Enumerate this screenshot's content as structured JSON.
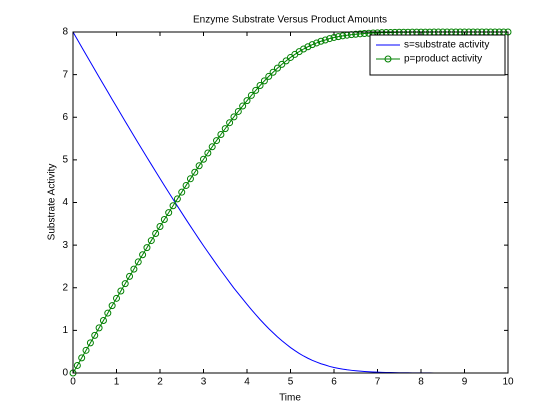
{
  "chart_data": {
    "type": "line",
    "title": "Enzyme Substrate Versus Product Amounts",
    "x_label": "Time",
    "y_label": "Substrate Activity",
    "x": [
      0,
      0.1,
      0.2,
      0.3,
      0.4,
      0.5,
      0.6,
      0.7,
      0.8,
      0.9,
      1,
      1.1,
      1.2,
      1.3,
      1.4,
      1.5,
      1.6,
      1.7,
      1.8,
      1.9,
      2,
      2.1,
      2.2,
      2.3,
      2.4,
      2.5,
      2.6,
      2.7,
      2.8,
      2.9,
      3,
      3.1,
      3.2,
      3.3,
      3.4,
      3.5,
      3.6,
      3.7,
      3.8,
      3.9,
      4,
      4.1,
      4.2,
      4.3,
      4.4,
      4.5,
      4.6,
      4.7,
      4.8,
      4.9,
      5,
      5.1,
      5.2,
      5.3,
      5.4,
      5.5,
      5.6,
      5.7,
      5.8,
      5.9,
      6,
      6.1,
      6.2,
      6.3,
      6.4,
      6.5,
      6.6,
      6.7,
      6.8,
      6.9,
      7,
      7.1,
      7.2,
      7.3,
      7.4,
      7.5,
      7.6,
      7.7,
      7.8,
      7.9,
      8,
      8.1,
      8.2,
      8.3,
      8.4,
      8.5,
      8.6,
      8.7,
      8.8,
      8.9,
      9,
      9.1,
      9.2,
      9.3,
      9.4,
      9.5,
      9.6,
      9.7,
      9.8,
      9.9,
      10
    ],
    "series": [
      {
        "name": "s=substrate activity",
        "color": "#0000ff",
        "marker": "none",
        "values": [
          8,
          7.823,
          7.646,
          7.468,
          7.293,
          7.117,
          6.942,
          6.768,
          6.594,
          6.42,
          6.248,
          6.076,
          5.904,
          5.734,
          5.563,
          5.394,
          5.226,
          5.059,
          4.893,
          4.728,
          4.563,
          4.399,
          4.238,
          4.076,
          3.916,
          3.758,
          3.6,
          3.444,
          3.29,
          3.137,
          2.985,
          2.839,
          2.693,
          2.547,
          2.405,
          2.267,
          2.128,
          1.991,
          1.864,
          1.737,
          1.61,
          1.488,
          1.37,
          1.255,
          1.146,
          1.042,
          0.944,
          0.848,
          0.76,
          0.678,
          0.597,
          0.526,
          0.46,
          0.399,
          0.346,
          0.297,
          0.257,
          0.217,
          0.187,
          0.154,
          0.128,
          0.109,
          0.09,
          0.075,
          0.063,
          0.052,
          0.043,
          0.035,
          0.029,
          0.024,
          0.02,
          0.016,
          0.013,
          0.011,
          0.009,
          0.007,
          0.006,
          0.005,
          0.004,
          0.003,
          0.002,
          0.002,
          0.002,
          0.001,
          0.001,
          0.001,
          0.001,
          0.001,
          0,
          0,
          0,
          0,
          0,
          0,
          0,
          0,
          0,
          0,
          0,
          0,
          0
        ]
      },
      {
        "name": "p=product activity",
        "color": "#008000",
        "marker": "circle",
        "values": [
          0,
          0.177,
          0.354,
          0.532,
          0.707,
          0.883,
          1.058,
          1.232,
          1.406,
          1.58,
          1.752,
          1.924,
          2.096,
          2.266,
          2.437,
          2.606,
          2.774,
          2.941,
          3.107,
          3.272,
          3.437,
          3.601,
          3.762,
          3.924,
          4.084,
          4.242,
          4.4,
          4.556,
          4.71,
          4.863,
          5.015,
          5.161,
          5.307,
          5.453,
          5.595,
          5.733,
          5.872,
          6.009,
          6.136,
          6.263,
          6.39,
          6.512,
          6.63,
          6.745,
          6.854,
          6.958,
          7.056,
          7.152,
          7.24,
          7.322,
          7.403,
          7.474,
          7.54,
          7.601,
          7.654,
          7.703,
          7.743,
          7.783,
          7.813,
          7.846,
          7.872,
          7.891,
          7.91,
          7.925,
          7.937,
          7.948,
          7.957,
          7.965,
          7.971,
          7.976,
          7.98,
          7.984,
          7.987,
          7.989,
          7.991,
          7.993,
          7.994,
          7.995,
          7.996,
          7.997,
          7.998,
          7.998,
          7.998,
          7.999,
          7.999,
          7.999,
          7.999,
          7.999,
          8,
          8,
          8,
          8,
          8,
          8,
          8,
          8,
          8,
          8,
          8,
          8,
          8
        ]
      }
    ],
    "xlim": [
      0,
      10
    ],
    "xticks": [
      0,
      1,
      2,
      3,
      4,
      5,
      6,
      7,
      8,
      9,
      10
    ],
    "ylim": [
      0,
      8
    ],
    "yticks": [
      0,
      1,
      2,
      3,
      4,
      5,
      6,
      7,
      8
    ],
    "legend": "upper right"
  }
}
